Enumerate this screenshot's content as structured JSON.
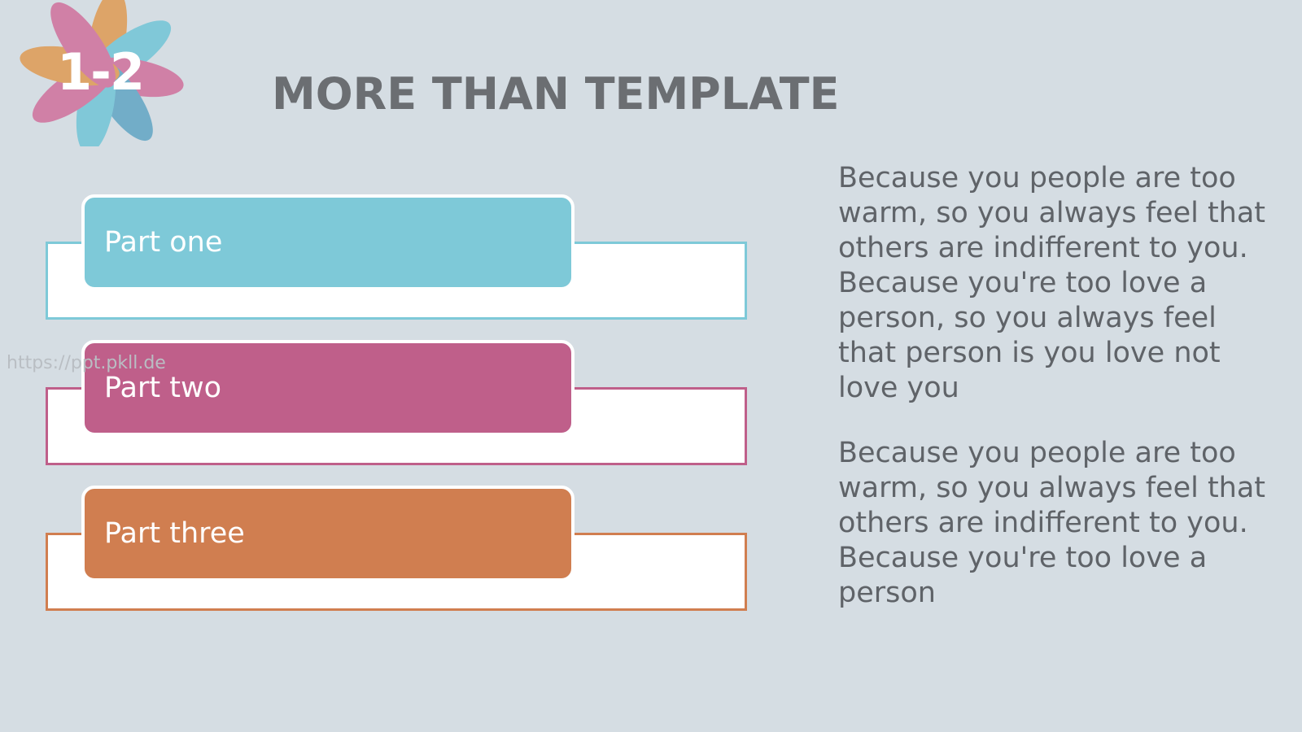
{
  "badge": "1-2",
  "title": "MORE THAN TEMPLATE",
  "watermark": "https://ppt.pkll.de",
  "parts": [
    {
      "label": "Part one",
      "color": "#7ec9d8"
    },
    {
      "label": "Part two",
      "color": "#bf5f8a"
    },
    {
      "label": "Part three",
      "color": "#d07e50"
    }
  ],
  "paragraphs": [
    "Because you people are too warm, so you always feel that others are indifferent to you. Because you're too love a person, so you always feel that person is you love not love you",
    "Because you people are too warm, so you always feel that others are indifferent to you. Because you're too love a person"
  ]
}
